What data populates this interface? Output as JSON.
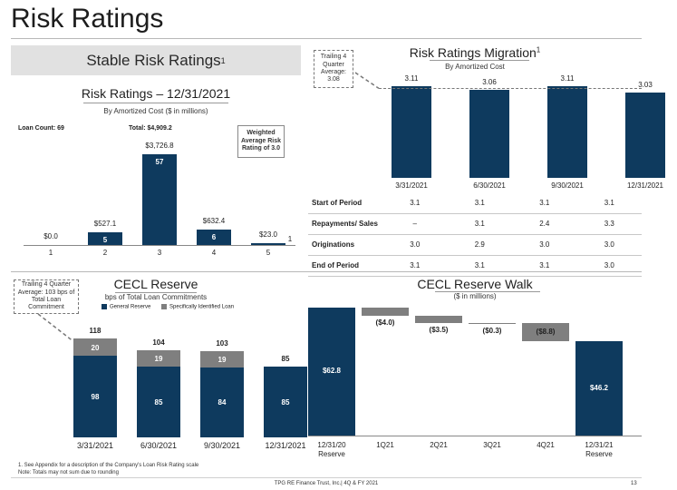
{
  "page": {
    "title": "Risk Ratings",
    "banner": "Stable Risk Ratings",
    "banner_sup": "1",
    "footnote1": "1. See Appendix for a description of the Company's Loan Risk Rating scale",
    "footnote2": "Note: Totals may not sum due to rounding",
    "footer_center": "TPG RE Finance Trust, Inc.| 4Q & FY 2021",
    "page_number": "13"
  },
  "risk_ratings": {
    "title": "Risk Ratings – 12/31/2021",
    "subtitle": "By Amortized Cost ($ in millions)",
    "loan_count": "Loan Count: 69",
    "total": "Total: $4,909.2",
    "callout": "Weighted Average Risk Rating of 3.0",
    "chart_data": {
      "type": "bar",
      "categories": [
        "1",
        "2",
        "3",
        "4",
        "5"
      ],
      "values": [
        0.0,
        527.1,
        3726.8,
        632.4,
        23.0
      ],
      "value_labels": [
        "$0.0",
        "$527.1",
        "$3,726.8",
        "$632.4",
        "$23.0"
      ],
      "loan_counts": [
        "",
        "5",
        "57",
        "6",
        "1"
      ],
      "colors": {
        "bar": "#0e3a5e"
      }
    }
  },
  "migration": {
    "title": "Risk Ratings Migration",
    "title_sup": "1",
    "subtitle": "By Amortized Cost",
    "callout": "Trailing 4 Quarter Average: 3.08",
    "chart_data": {
      "type": "bar",
      "categories": [
        "3/31/2021",
        "6/30/2021",
        "9/30/2021",
        "12/31/2021"
      ],
      "values": [
        3.11,
        3.06,
        3.11,
        3.03
      ],
      "value_labels": [
        "3.11",
        "3.06",
        "3.11",
        "3.03"
      ],
      "reference_line": 3.08,
      "colors": {
        "bar": "#0e3a5e"
      }
    },
    "table": {
      "rows": [
        {
          "label": "Start of Period",
          "cells": [
            "3.1",
            "3.1",
            "3.1",
            "3.1"
          ]
        },
        {
          "label": "Repayments/ Sales",
          "cells": [
            "–",
            "3.1",
            "2.4",
            "3.3"
          ]
        },
        {
          "label": "Originations",
          "cells": [
            "3.0",
            "2.9",
            "3.0",
            "3.0"
          ]
        },
        {
          "label": "End of Period",
          "cells": [
            "3.1",
            "3.1",
            "3.1",
            "3.0"
          ]
        }
      ]
    }
  },
  "cecl_reserve": {
    "title": "CECL Reserve",
    "subtitle": "bps of Total Loan Commitments",
    "callout": "Trailing 4 Quarter Average: 103 bps of Total Loan Commitment",
    "legend": [
      "General Reserve",
      "Specifically Identified Loan"
    ],
    "chart_data": {
      "type": "bar",
      "stacked": true,
      "categories": [
        "3/31/2021",
        "6/30/2021",
        "9/30/2021",
        "12/31/2021"
      ],
      "series": [
        {
          "name": "General Reserve",
          "values": [
            98,
            85,
            84,
            85
          ]
        },
        {
          "name": "Specifically Identified Loan",
          "values": [
            20,
            19,
            19,
            0
          ]
        }
      ],
      "totals": [
        "118",
        "104",
        "103",
        "85"
      ],
      "colors": {
        "general": "#0e3a5e",
        "specific": "#7f7f7f"
      }
    }
  },
  "cecl_walk": {
    "title": "CECL Reserve Walk",
    "subtitle": "($ in millions)",
    "chart_data": {
      "type": "bar",
      "waterfall": true,
      "categories": [
        "12/31/20 Reserve",
        "1Q21",
        "2Q21",
        "3Q21",
        "4Q21",
        "12/31/21 Reserve"
      ],
      "category_lines": [
        [
          "12/31/20",
          "Reserve"
        ],
        [
          "1Q21"
        ],
        [
          "2Q21"
        ],
        [
          "3Q21"
        ],
        [
          "4Q21"
        ],
        [
          "12/31/21",
          "Reserve"
        ]
      ],
      "values": [
        62.8,
        -4.0,
        -3.5,
        -0.3,
        -8.8,
        46.2
      ],
      "value_labels": [
        "$62.8",
        "($4.0)",
        "($3.5)",
        "($0.3)",
        "($8.8)",
        "$46.2"
      ],
      "colors": {
        "total": "#0e3a5e",
        "change": "#7f7f7f"
      }
    }
  }
}
